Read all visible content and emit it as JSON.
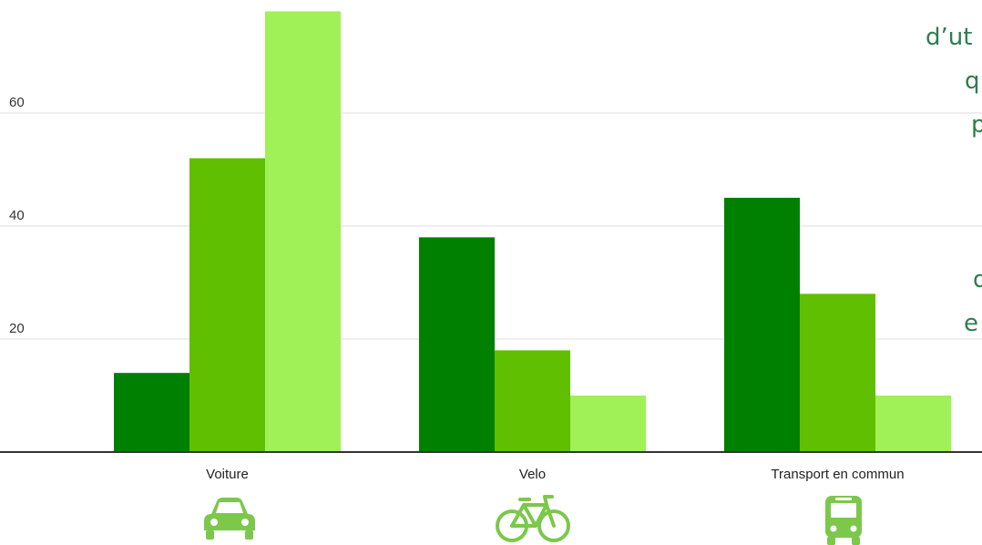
{
  "chart_data": {
    "type": "bar",
    "categories": [
      "Voiture",
      "Velo",
      "Transport en commun"
    ],
    "series": [
      {
        "values": [
          14,
          38,
          45
        ],
        "color": "#008000"
      },
      {
        "values": [
          52,
          18,
          28
        ],
        "color": "#5fbf00"
      },
      {
        "values": [
          78,
          10,
          10
        ],
        "color": "#a0f058"
      }
    ],
    "y_ticks": [
      20,
      40,
      60
    ],
    "ylim": [
      0,
      78
    ],
    "grid": true,
    "legend": "none"
  },
  "category_icons": [
    "car-icon",
    "bicycle-icon",
    "bus-icon"
  ],
  "icon_color": "#7cc84a",
  "side_text": [
    "d’ut",
    "q",
    "p",
    "d",
    "e"
  ]
}
